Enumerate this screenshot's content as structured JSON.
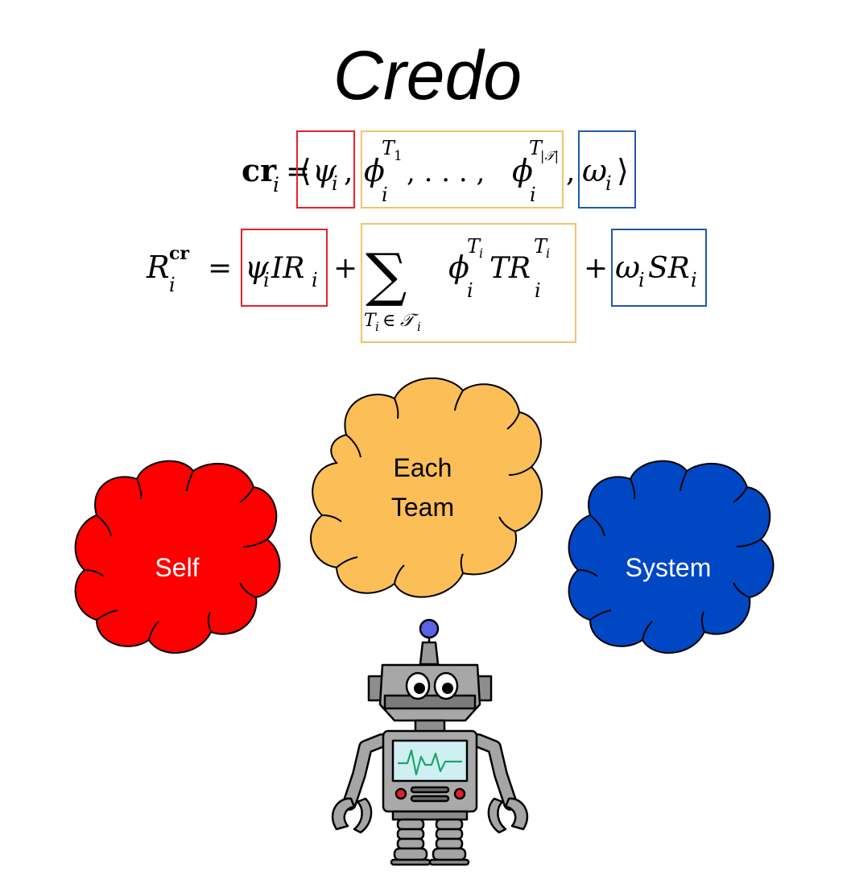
{
  "title": "Credo",
  "equations": {
    "credo_tuple": {
      "lhs": "cr",
      "lhs_sub": "i",
      "equals": "=",
      "open": "⟨",
      "psi": "ψ",
      "psi_sub": "i",
      "comma": ",",
      "phi": "ϕ",
      "phi_sub": "i",
      "phi_sup_first": "T",
      "phi_sup_first_sub": "1",
      "ellipsis": ", . . . ,",
      "phi_sup_last": "T",
      "phi_sup_last_sub": "|𝒯|",
      "omega": "ω",
      "omega_sub": "i",
      "close": "⟩"
    },
    "reward": {
      "lhs": "R",
      "lhs_sup": "cr",
      "lhs_sub": "i",
      "equals": "=",
      "psi_term": "ψ",
      "psi_sub": "i",
      "ir": "IR",
      "ir_sub": "i",
      "plus": "+",
      "sum": "∑",
      "sum_index": "T",
      "sum_index_sub": "i",
      "sum_in": "∈",
      "sum_set": "𝒯",
      "sum_set_sub": "i",
      "phi": "ϕ",
      "phi_sub": "i",
      "phi_sup": "T",
      "phi_sup_sub": "i",
      "tr": "TR",
      "tr_sub": "i",
      "tr_sup": "T",
      "tr_sup_sub": "i",
      "omega": "ω",
      "omega_sub": "i",
      "sr": "SR",
      "sr_sub": "i"
    }
  },
  "clouds": {
    "self": {
      "label": "Self",
      "color": "#ff0000"
    },
    "team": {
      "label_line1": "Each",
      "label_line2": "Team",
      "color": "#fcbe57"
    },
    "system": {
      "label": "System",
      "color": "#0047c4"
    }
  },
  "highlight_colors": {
    "self": "#e8202a",
    "team": "#f5c26a",
    "system": "#1f5aa8"
  }
}
